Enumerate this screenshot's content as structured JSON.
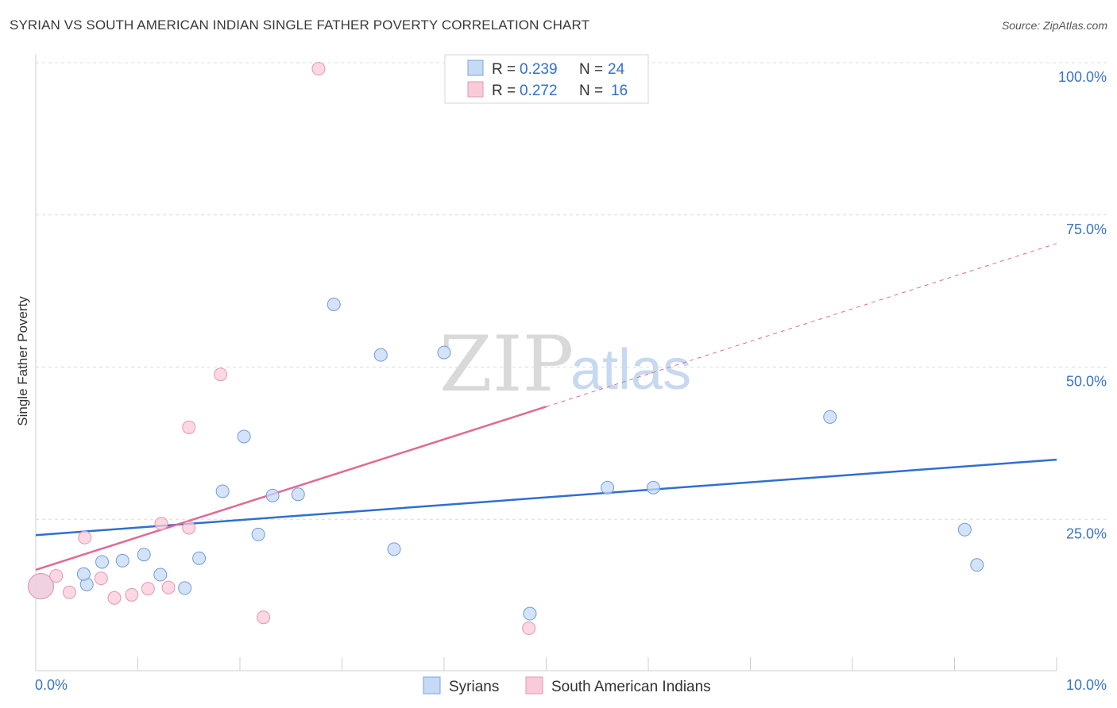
{
  "title": "SYRIAN VS SOUTH AMERICAN INDIAN SINGLE FATHER POVERTY CORRELATION CHART",
  "source": "Source: ZipAtlas.com",
  "watermark": {
    "zip": "ZIP",
    "atlas": "atlas"
  },
  "colors": {
    "syrian": "#2f6fd0",
    "syrian_fill": "#c5daf5",
    "sai": "#e06a93",
    "sai_fill": "#f9cbd9",
    "tick": "#3b73c4"
  },
  "legend": {
    "rows": [
      {
        "r_label": "R =",
        "r_value": "0.239",
        "n_label": "N =",
        "n_value": "24"
      },
      {
        "r_label": "R =",
        "r_value": "0.272",
        "n_label": "N =",
        "n_value": "16"
      }
    ]
  },
  "chart_data": {
    "type": "scatter",
    "xlabel": "",
    "ylabel": "Single Father Poverty",
    "xlim": [
      0,
      10
    ],
    "ylim": [
      0,
      100
    ],
    "x_tick_labels": [
      "0.0%",
      "10.0%"
    ],
    "y_tick_labels": [
      "100.0%",
      "75.0%",
      "50.0%",
      "25.0%"
    ],
    "y_ticks": [
      100,
      75,
      50,
      25
    ],
    "grid": true,
    "series": [
      {
        "name": "Syrians",
        "points": [
          {
            "x": 0.05,
            "y": 14.0,
            "big": true
          },
          {
            "x": 0.5,
            "y": 14.3
          },
          {
            "x": 0.47,
            "y": 16.0
          },
          {
            "x": 0.65,
            "y": 18.0
          },
          {
            "x": 0.85,
            "y": 18.2
          },
          {
            "x": 1.06,
            "y": 19.2
          },
          {
            "x": 1.22,
            "y": 15.9
          },
          {
            "x": 1.46,
            "y": 13.7
          },
          {
            "x": 1.6,
            "y": 18.6
          },
          {
            "x": 1.83,
            "y": 29.6
          },
          {
            "x": 2.04,
            "y": 38.6
          },
          {
            "x": 2.18,
            "y": 22.5
          },
          {
            "x": 2.32,
            "y": 28.9
          },
          {
            "x": 2.57,
            "y": 29.1
          },
          {
            "x": 2.92,
            "y": 60.3
          },
          {
            "x": 3.38,
            "y": 52.0
          },
          {
            "x": 3.51,
            "y": 20.1
          },
          {
            "x": 4.0,
            "y": 52.4
          },
          {
            "x": 4.84,
            "y": 9.5
          },
          {
            "x": 5.6,
            "y": 30.2
          },
          {
            "x": 6.05,
            "y": 30.2
          },
          {
            "x": 7.78,
            "y": 41.8
          },
          {
            "x": 9.1,
            "y": 23.3
          },
          {
            "x": 9.22,
            "y": 17.5
          }
        ],
        "trend": {
          "x0": 0,
          "y0": 22.4,
          "x1": 10,
          "y1": 34.8
        }
      },
      {
        "name": "South American Indians",
        "points": [
          {
            "x": 0.05,
            "y": 14.0,
            "big": true
          },
          {
            "x": 0.2,
            "y": 15.7
          },
          {
            "x": 0.33,
            "y": 13.0
          },
          {
            "x": 0.48,
            "y": 22.0
          },
          {
            "x": 0.64,
            "y": 15.3
          },
          {
            "x": 0.77,
            "y": 12.1
          },
          {
            "x": 0.94,
            "y": 12.6
          },
          {
            "x": 1.1,
            "y": 13.6
          },
          {
            "x": 1.23,
            "y": 24.3
          },
          {
            "x": 1.3,
            "y": 13.8
          },
          {
            "x": 1.5,
            "y": 23.6
          },
          {
            "x": 1.5,
            "y": 40.1
          },
          {
            "x": 1.81,
            "y": 48.8
          },
          {
            "x": 2.23,
            "y": 8.9
          },
          {
            "x": 2.77,
            "y": 99.0
          },
          {
            "x": 4.83,
            "y": 7.1
          }
        ],
        "trend": {
          "x0": 0,
          "y0": 16.7,
          "x1": 5.0,
          "y1": 43.5,
          "dash_to_x": 10,
          "dash_to_y": 70.3
        }
      }
    ]
  },
  "bottom_legend": [
    "Syrians",
    "South American Indians"
  ]
}
